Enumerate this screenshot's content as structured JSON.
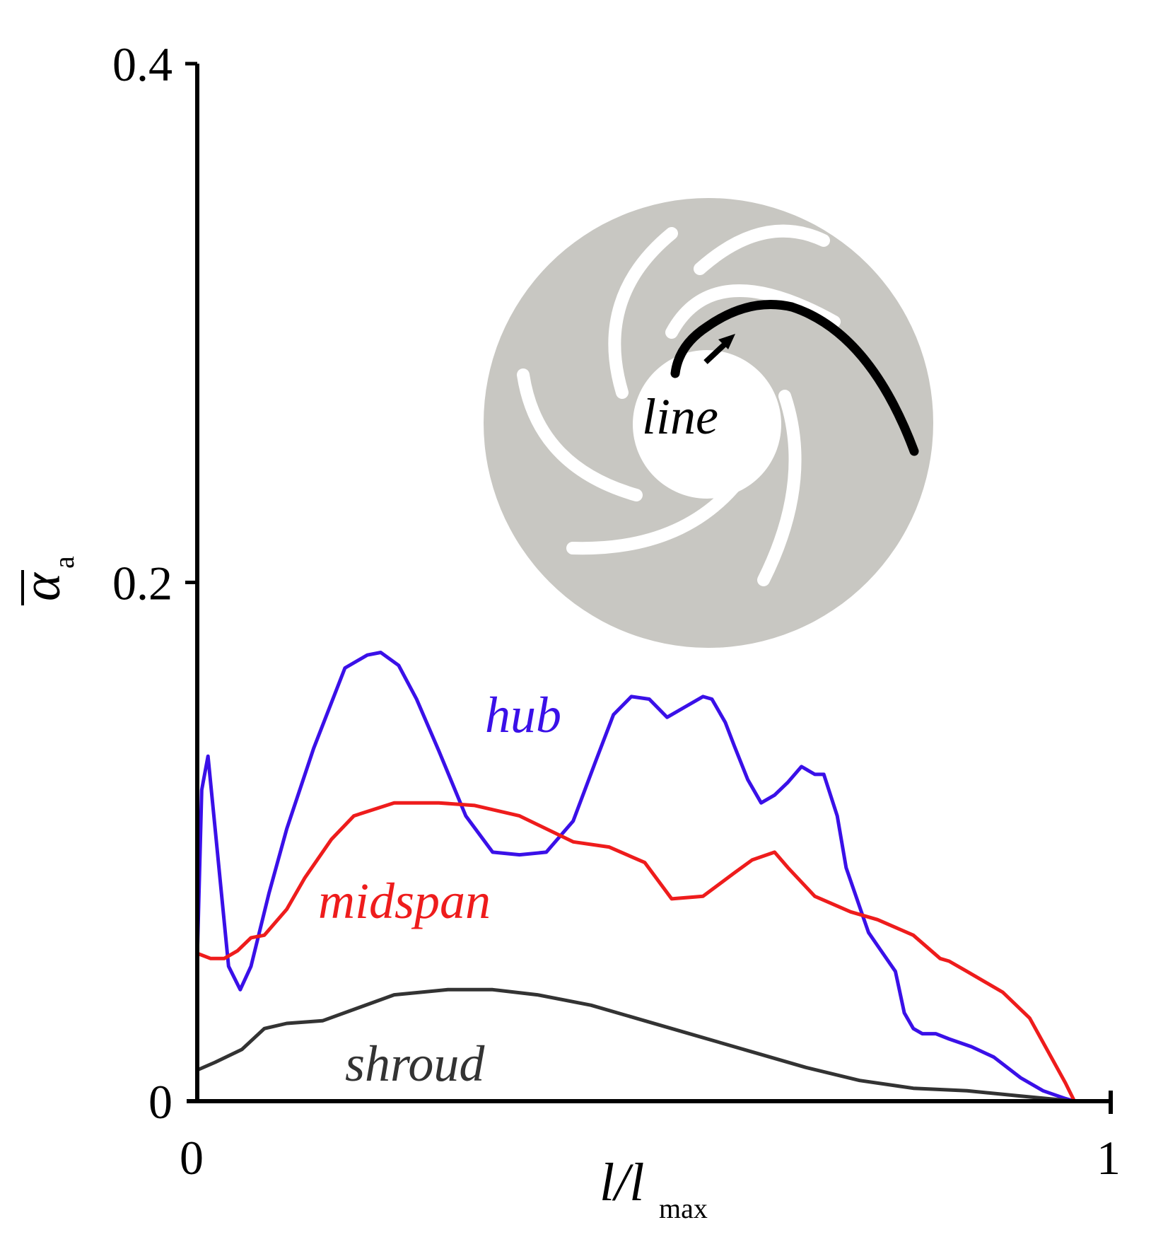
{
  "chart_data": {
    "type": "line",
    "xlabel_main": "l/l",
    "xlabel_sub": "max",
    "ylabel_main": "α",
    "ylabel_sub": "a",
    "xlim": [
      0,
      1
    ],
    "ylim": [
      0,
      0.4
    ],
    "x_ticks": [
      {
        "value": 0,
        "label": "0"
      },
      {
        "value": 1,
        "label": "1"
      }
    ],
    "y_ticks": [
      {
        "value": 0,
        "label": "0"
      },
      {
        "value": 0.2,
        "label": "0.2"
      },
      {
        "value": 0.4,
        "label": "0.4"
      }
    ],
    "series": [
      {
        "name": "hub",
        "color": "#3a10e8",
        "x": [
          0,
          0.005,
          0.012,
          0.02,
          0.035,
          0.048,
          0.06,
          0.08,
          0.1,
          0.13,
          0.165,
          0.19,
          0.205,
          0.225,
          0.245,
          0.27,
          0.3,
          0.33,
          0.36,
          0.39,
          0.42,
          0.445,
          0.465,
          0.485,
          0.505,
          0.525,
          0.545,
          0.565,
          0.575,
          0.59,
          0.6,
          0.615,
          0.63,
          0.645,
          0.66,
          0.675,
          0.69,
          0.7,
          0.715,
          0.725,
          0.74,
          0.75,
          0.76,
          0.78,
          0.79,
          0.8,
          0.81,
          0.825,
          0.84,
          0.865,
          0.89,
          0.92,
          0.945,
          0.97,
          0.98
        ],
        "y": [
          0.055,
          0.12,
          0.133,
          0.105,
          0.052,
          0.043,
          0.052,
          0.08,
          0.105,
          0.136,
          0.167,
          0.172,
          0.173,
          0.168,
          0.155,
          0.135,
          0.11,
          0.096,
          0.095,
          0.096,
          0.108,
          0.131,
          0.149,
          0.156,
          0.155,
          0.148,
          0.152,
          0.156,
          0.155,
          0.146,
          0.137,
          0.124,
          0.115,
          0.118,
          0.123,
          0.129,
          0.126,
          0.126,
          0.11,
          0.09,
          0.075,
          0.065,
          0.06,
          0.05,
          0.034,
          0.028,
          0.026,
          0.026,
          0.024,
          0.021,
          0.017,
          0.009,
          0.004,
          0.001,
          0
        ]
      },
      {
        "name": "midspan",
        "color": "#ee1c1c",
        "x": [
          0,
          0.015,
          0.03,
          0.045,
          0.06,
          0.075,
          0.1,
          0.12,
          0.15,
          0.175,
          0.22,
          0.27,
          0.31,
          0.36,
          0.42,
          0.46,
          0.5,
          0.53,
          0.565,
          0.6,
          0.62,
          0.645,
          0.66,
          0.69,
          0.71,
          0.73,
          0.76,
          0.8,
          0.83,
          0.84,
          0.86,
          0.88,
          0.9,
          0.93,
          0.97,
          0.98
        ],
        "y": [
          0.057,
          0.055,
          0.055,
          0.058,
          0.063,
          0.064,
          0.074,
          0.086,
          0.101,
          0.11,
          0.115,
          0.115,
          0.114,
          0.11,
          0.1,
          0.098,
          0.092,
          0.078,
          0.079,
          0.088,
          0.093,
          0.096,
          0.09,
          0.079,
          0.076,
          0.073,
          0.07,
          0.064,
          0.055,
          0.054,
          0.05,
          0.046,
          0.042,
          0.032,
          0.007,
          0
        ]
      },
      {
        "name": "shroud",
        "color": "#333333",
        "x": [
          0,
          0.02,
          0.05,
          0.075,
          0.1,
          0.14,
          0.22,
          0.28,
          0.33,
          0.38,
          0.44,
          0.5,
          0.56,
          0.62,
          0.68,
          0.74,
          0.8,
          0.86,
          0.92,
          0.98
        ],
        "y": [
          0.012,
          0.015,
          0.02,
          0.028,
          0.03,
          0.031,
          0.041,
          0.043,
          0.043,
          0.041,
          0.037,
          0.031,
          0.025,
          0.019,
          0.013,
          0.008,
          0.005,
          0.004,
          0.002,
          0
        ]
      }
    ],
    "inset_label": "line"
  }
}
